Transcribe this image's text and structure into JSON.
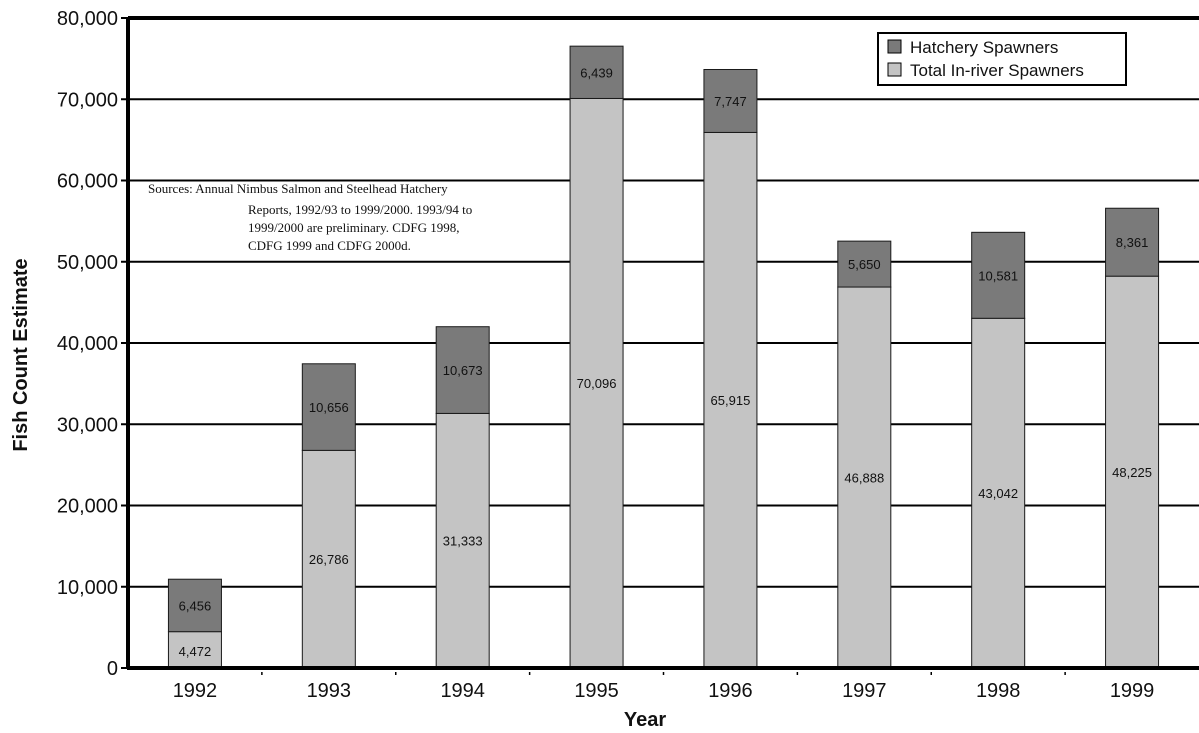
{
  "chart_data": {
    "type": "bar",
    "stacked": true,
    "categories": [
      "1992",
      "1993",
      "1994",
      "1995",
      "1996",
      "1997",
      "1998",
      "1999"
    ],
    "series": [
      {
        "name": "Total In-river Spawners",
        "color": "#c4c4c4",
        "values": [
          4472,
          26786,
          31333,
          70096,
          65915,
          46888,
          43042,
          48225
        ],
        "labels": [
          "4,472",
          "26,786",
          "31,333",
          "70,096",
          "65,915",
          "46,888",
          "43,042",
          "48,225"
        ]
      },
      {
        "name": "Hatchery Spawners",
        "color": "#7a7a7a",
        "values": [
          6456,
          10656,
          10673,
          6439,
          7747,
          5650,
          10581,
          8361
        ],
        "labels": [
          "6,456",
          "10,656",
          "10,673",
          "6,439",
          "7,747",
          "5,650",
          "10,581",
          "8,361"
        ]
      }
    ],
    "xlabel": "Year",
    "ylabel": "Fish Count Estimate",
    "ylim": [
      0,
      80000
    ],
    "yticks": [
      0,
      10000,
      20000,
      30000,
      40000,
      50000,
      60000,
      70000,
      80000
    ],
    "ytick_labels": [
      "0",
      "10,000",
      "20,000",
      "30,000",
      "40,000",
      "50,000",
      "60,000",
      "70,000",
      "80,000"
    ],
    "grid": true,
    "legend_position": "top-right",
    "annotation": [
      "Sources: Annual Nimbus Salmon and Steelhead Hatchery",
      "Reports, 1992/93 to 1999/2000. 1993/94 to",
      "1999/2000 are preliminary. CDFG 1998,",
      "CDFG 1999 and CDFG 2000d."
    ]
  }
}
